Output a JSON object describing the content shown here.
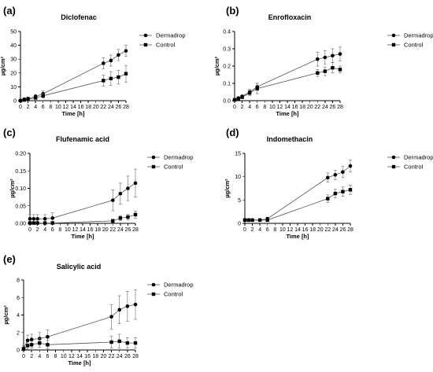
{
  "chart_data": [
    {
      "panel": "(a)",
      "title": "Diclofenac",
      "type": "line",
      "xlabel": "Time [h]",
      "ylabel": "µg/cm²",
      "xlim": [
        0,
        28
      ],
      "ylim": [
        0,
        50
      ],
      "xticks": [
        0,
        2,
        4,
        6,
        8,
        10,
        12,
        14,
        16,
        18,
        20,
        22,
        24,
        26,
        28
      ],
      "yticks": [
        0,
        10,
        20,
        30,
        40,
        50
      ],
      "ytick_labels": [
        "0",
        "10",
        "20",
        "30",
        "40",
        "50"
      ],
      "series": [
        {
          "name": "Dermadrop",
          "marker": "circle",
          "x": [
            0,
            1,
            2,
            4,
            6,
            22,
            24,
            26,
            28
          ],
          "y": [
            0,
            1,
            1.5,
            3,
            5,
            27,
            29,
            33,
            36
          ],
          "err": [
            0,
            1,
            1,
            1.5,
            2,
            4,
            4,
            4,
            4
          ]
        },
        {
          "name": "Control",
          "marker": "square",
          "x": [
            0,
            1,
            2,
            4,
            6,
            22,
            24,
            26,
            28
          ],
          "y": [
            0,
            0.5,
            1,
            2,
            3.5,
            14.5,
            16,
            17,
            19.5
          ],
          "err": [
            0,
            0.5,
            0.5,
            1,
            1.5,
            4,
            5,
            5,
            6
          ]
        }
      ]
    },
    {
      "panel": "(b)",
      "title": "Enrofloxacin",
      "type": "line",
      "xlabel": "Time [h]",
      "ylabel": "µg/cm²",
      "xlim": [
        0,
        28
      ],
      "ylim": [
        0,
        0.4
      ],
      "xticks": [
        0,
        2,
        4,
        6,
        8,
        10,
        12,
        14,
        16,
        18,
        20,
        22,
        24,
        26,
        28
      ],
      "yticks": [
        0,
        0.1,
        0.2,
        0.3,
        0.4
      ],
      "ytick_labels": [
        "0.0",
        "0.1",
        "0.2",
        "0.3",
        "0.4"
      ],
      "series": [
        {
          "name": "Dermadrop",
          "marker": "circle",
          "x": [
            0,
            1,
            2,
            4,
            6,
            22,
            24,
            26,
            28
          ],
          "y": [
            0.005,
            0.015,
            0.025,
            0.05,
            0.08,
            0.24,
            0.25,
            0.26,
            0.27
          ],
          "err": [
            0.003,
            0.005,
            0.008,
            0.015,
            0.02,
            0.04,
            0.04,
            0.04,
            0.04
          ]
        },
        {
          "name": "Control",
          "marker": "square",
          "x": [
            0,
            1,
            2,
            4,
            6,
            22,
            24,
            26,
            28
          ],
          "y": [
            0.005,
            0.012,
            0.02,
            0.045,
            0.07,
            0.16,
            0.17,
            0.19,
            0.18
          ],
          "err": [
            0.003,
            0.005,
            0.008,
            0.015,
            0.03,
            0.02,
            0.025,
            0.03,
            0.02
          ]
        }
      ]
    },
    {
      "panel": "(c)",
      "title": "Flufenamic acid",
      "type": "line",
      "xlabel": "Time [h]",
      "ylabel": "µg/cm²",
      "xlim": [
        0,
        28
      ],
      "ylim": [
        0,
        0.2
      ],
      "xticks": [
        0,
        2,
        4,
        6,
        8,
        10,
        12,
        14,
        16,
        18,
        20,
        22,
        24,
        26,
        28
      ],
      "yticks": [
        0,
        0.05,
        0.1,
        0.15,
        0.2
      ],
      "ytick_labels": [
        "0.00",
        "0.05",
        "0.10",
        "0.15",
        "0.20"
      ],
      "series": [
        {
          "name": "Dermadrop",
          "marker": "circle",
          "x": [
            0,
            1,
            2,
            4,
            6,
            22,
            24,
            26,
            28
          ],
          "y": [
            0.013,
            0.013,
            0.013,
            0.013,
            0.015,
            0.066,
            0.085,
            0.1,
            0.115
          ],
          "err": [
            0.012,
            0.012,
            0.012,
            0.012,
            0.015,
            0.03,
            0.03,
            0.035,
            0.04
          ]
        },
        {
          "name": "Control",
          "marker": "square",
          "x": [
            0,
            1,
            2,
            4,
            6,
            22,
            24,
            26,
            28
          ],
          "y": [
            0.001,
            0.001,
            0.001,
            0.001,
            0.001,
            0.007,
            0.015,
            0.018,
            0.025
          ],
          "err": [
            0.001,
            0.001,
            0.001,
            0.001,
            0.001,
            0.005,
            0.007,
            0.008,
            0.01
          ]
        }
      ]
    },
    {
      "panel": "(d)",
      "title": "Indomethacin",
      "type": "line",
      "xlabel": "Time [h]",
      "ylabel": "µg/cm²",
      "xlim": [
        0,
        28
      ],
      "ylim": [
        0,
        15
      ],
      "xticks": [
        0,
        2,
        4,
        6,
        8,
        10,
        12,
        14,
        16,
        18,
        20,
        22,
        24,
        26,
        28
      ],
      "yticks": [
        0,
        5,
        10,
        15
      ],
      "ytick_labels": [
        "0",
        "5",
        "10",
        "15"
      ],
      "series": [
        {
          "name": "Dermadrop",
          "marker": "circle",
          "x": [
            0,
            1,
            2,
            4,
            6,
            22,
            24,
            26,
            28
          ],
          "y": [
            0.7,
            0.7,
            0.7,
            0.7,
            1.0,
            9.8,
            10.4,
            11.0,
            12.3
          ],
          "err": [
            0.1,
            0.1,
            0.1,
            0.1,
            0.3,
            1.0,
            1.0,
            1.2,
            1.3
          ]
        },
        {
          "name": "Control",
          "marker": "square",
          "x": [
            0,
            1,
            2,
            4,
            6,
            22,
            24,
            26,
            28
          ],
          "y": [
            0.7,
            0.7,
            0.7,
            0.7,
            0.7,
            5.3,
            6.4,
            6.8,
            7.2
          ],
          "err": [
            0.1,
            0.1,
            0.1,
            0.1,
            0.2,
            0.8,
            0.9,
            1.0,
            1.0
          ]
        }
      ]
    },
    {
      "panel": "(e)",
      "title": "Salicylic acid",
      "type": "line",
      "xlabel": "Time [h]",
      "ylabel": "µg/cm²",
      "xlim": [
        0,
        28
      ],
      "ylim": [
        0,
        8
      ],
      "xticks": [
        0,
        2,
        4,
        6,
        8,
        10,
        12,
        14,
        16,
        18,
        20,
        22,
        24,
        26,
        28
      ],
      "yticks": [
        0,
        2,
        4,
        6,
        8
      ],
      "ytick_labels": [
        "0",
        "2",
        "4",
        "6",
        "8"
      ],
      "series": [
        {
          "name": "Dermadrop",
          "marker": "circle",
          "x": [
            0,
            1,
            2,
            4,
            6,
            22,
            24,
            26,
            28
          ],
          "y": [
            0.2,
            1.1,
            1.2,
            1.3,
            1.5,
            3.8,
            4.6,
            5.0,
            5.2
          ],
          "err": [
            0.3,
            0.6,
            0.6,
            0.7,
            0.8,
            1.4,
            1.6,
            1.7,
            1.7
          ]
        },
        {
          "name": "Control",
          "marker": "square",
          "x": [
            0,
            1,
            2,
            4,
            6,
            22,
            24,
            26,
            28
          ],
          "y": [
            0.1,
            0.5,
            0.6,
            0.8,
            0.6,
            0.9,
            1.0,
            0.8,
            0.8
          ],
          "err": [
            0.2,
            0.4,
            0.4,
            0.5,
            0.5,
            0.7,
            0.8,
            0.6,
            0.6
          ]
        }
      ]
    }
  ],
  "colors": {
    "line": "#555555",
    "marker": "#000000"
  }
}
